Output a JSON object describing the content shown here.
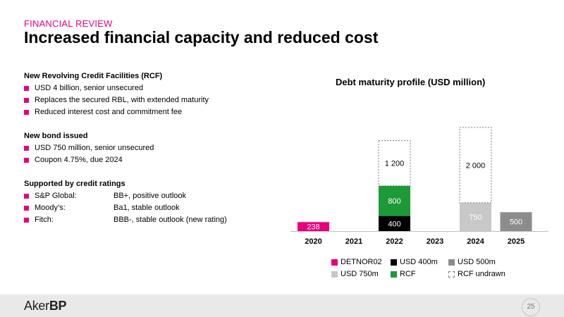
{
  "header": {
    "kicker": "FINANCIAL REVIEW",
    "title": "Increased financial capacity and reduced cost"
  },
  "left": {
    "rcf": {
      "heading": "New Revolving Credit Facilities (RCF)",
      "items": [
        "USD 4 billion, senior unsecured",
        "Replaces the secured RBL, with extended maturity",
        "Reduced interest cost and commitment fee"
      ]
    },
    "bond": {
      "heading": "New bond issued",
      "items": [
        "USD 750 million, senior unsecured",
        "Coupon 4.75%, due 2024"
      ]
    },
    "ratings": {
      "heading": "Supported by credit ratings",
      "items": [
        {
          "agency": "S&P Global:",
          "rating": "BB+, positive outlook"
        },
        {
          "agency": "Moody’s:",
          "rating": "Ba1, stable outlook"
        },
        {
          "agency": "Fitch:",
          "rating": "BBB-, stable outlook (new rating)"
        }
      ]
    }
  },
  "chart_data": {
    "type": "bar",
    "stacked": true,
    "title": "Debt maturity profile (USD million)",
    "categories": [
      "2020",
      "2021",
      "2022",
      "2023",
      "2024",
      "2025"
    ],
    "series": [
      {
        "name": "DETNOR02",
        "color": "#e6007e",
        "values": [
          238,
          0,
          0,
          0,
          0,
          0
        ],
        "labels": [
          "238",
          "",
          "",
          "",
          "",
          ""
        ]
      },
      {
        "name": "USD 400m",
        "color": "#000000",
        "values": [
          0,
          0,
          400,
          0,
          0,
          0
        ],
        "labels": [
          "",
          "",
          "400",
          "",
          "",
          ""
        ]
      },
      {
        "name": "USD 500m",
        "color": "#8c8c8c",
        "values": [
          0,
          0,
          0,
          0,
          0,
          500
        ],
        "labels": [
          "",
          "",
          "",
          "",
          "",
          "500"
        ]
      },
      {
        "name": "USD 750m",
        "color": "#c8c8c8",
        "values": [
          0,
          0,
          0,
          0,
          750,
          0
        ],
        "labels": [
          "",
          "",
          "",
          "",
          "750",
          ""
        ]
      },
      {
        "name": "RCF",
        "color": "#1d9a38",
        "values": [
          0,
          0,
          800,
          0,
          0,
          0
        ],
        "labels": [
          "",
          "",
          "800",
          "",
          "",
          ""
        ]
      },
      {
        "name": "RCF undrawn",
        "color": "#ffffff",
        "dashed": true,
        "values": [
          0,
          0,
          1200,
          0,
          2000,
          0
        ],
        "labels": [
          "",
          "",
          "1 200",
          "",
          "2 000",
          ""
        ]
      }
    ],
    "legend_position": "bottom",
    "grid": false
  },
  "footer": {
    "logo_part1": "Aker",
    "logo_part2": "BP",
    "page_number": "25"
  }
}
